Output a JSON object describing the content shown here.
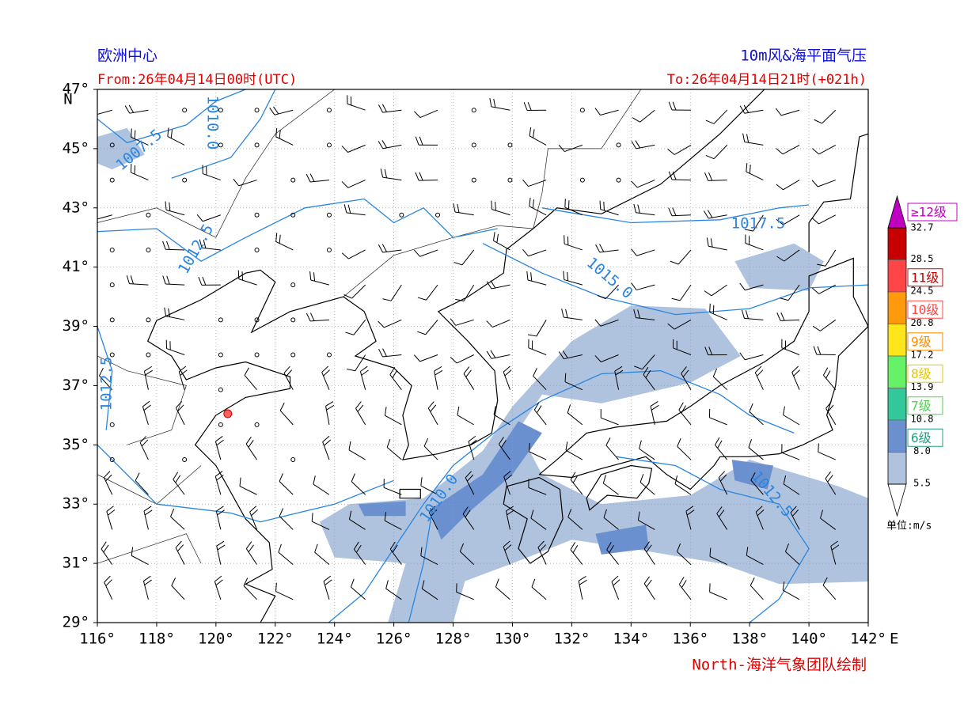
{
  "header": {
    "left_title": "欧洲中心",
    "right_title": "10m风&海平面气压",
    "from": "From:26年04月14日00时(UTC)",
    "to": "To:26年04月14日21时(+021h)",
    "credit": "North-海洋气象团队绘制"
  },
  "axes": {
    "lon_ticks": [
      {
        "value": 116,
        "label": "116°"
      },
      {
        "value": 118,
        "label": "118°"
      },
      {
        "value": 120,
        "label": "120°"
      },
      {
        "value": 122,
        "label": "122°"
      },
      {
        "value": 124,
        "label": "124°"
      },
      {
        "value": 126,
        "label": "126°"
      },
      {
        "value": 128,
        "label": "128°"
      },
      {
        "value": 130,
        "label": "130°"
      },
      {
        "value": 132,
        "label": "132°"
      },
      {
        "value": 134,
        "label": "134°"
      },
      {
        "value": 136,
        "label": "136°"
      },
      {
        "value": 138,
        "label": "138°"
      },
      {
        "value": 140,
        "label": "140°"
      },
      {
        "value": 142,
        "label": "142°"
      }
    ],
    "lat_ticks": [
      {
        "value": 29,
        "label": "29°"
      },
      {
        "value": 31,
        "label": "31°"
      },
      {
        "value": 33,
        "label": "33°"
      },
      {
        "value": 35,
        "label": "35°"
      },
      {
        "value": 37,
        "label": "37°"
      },
      {
        "value": 39,
        "label": "39°"
      },
      {
        "value": 41,
        "label": "41°"
      },
      {
        "value": 43,
        "label": "43°"
      },
      {
        "value": 45,
        "label": "45°"
      },
      {
        "value": 47,
        "label": "47°"
      }
    ],
    "lon_suffix": "E",
    "lat_suffix": "N"
  },
  "contour_labels": [
    "1007.5",
    "1010.0",
    "1012.5",
    "1017.5",
    "1015.0",
    "1012.5",
    "1010.0",
    "1012.5"
  ],
  "colorbar": {
    "bounds": [
      5.5,
      {
        "value": 8,
        "label": "8.0"
      },
      10.8,
      13.9,
      17.2,
      20.8,
      24.5,
      28.5,
      32.7
    ],
    "colors": [
      "#b0c3de",
      "#6b90cf",
      "#33c89a",
      "#66f266",
      "#ffe61a",
      "#ff9a0d",
      "#ff4545",
      "#c80000"
    ],
    "over_color": "#c000c0",
    "grades": [
      "6级",
      "7级",
      "8级",
      "9级",
      "10级",
      "11级",
      "≥12级"
    ],
    "grade_colors": [
      "#1fa080",
      "#4cd44c",
      "#e6c800",
      "#ff8c00",
      "#ff4545",
      "#c80000",
      "#c000c0"
    ],
    "unit": "单位:m/s"
  }
}
